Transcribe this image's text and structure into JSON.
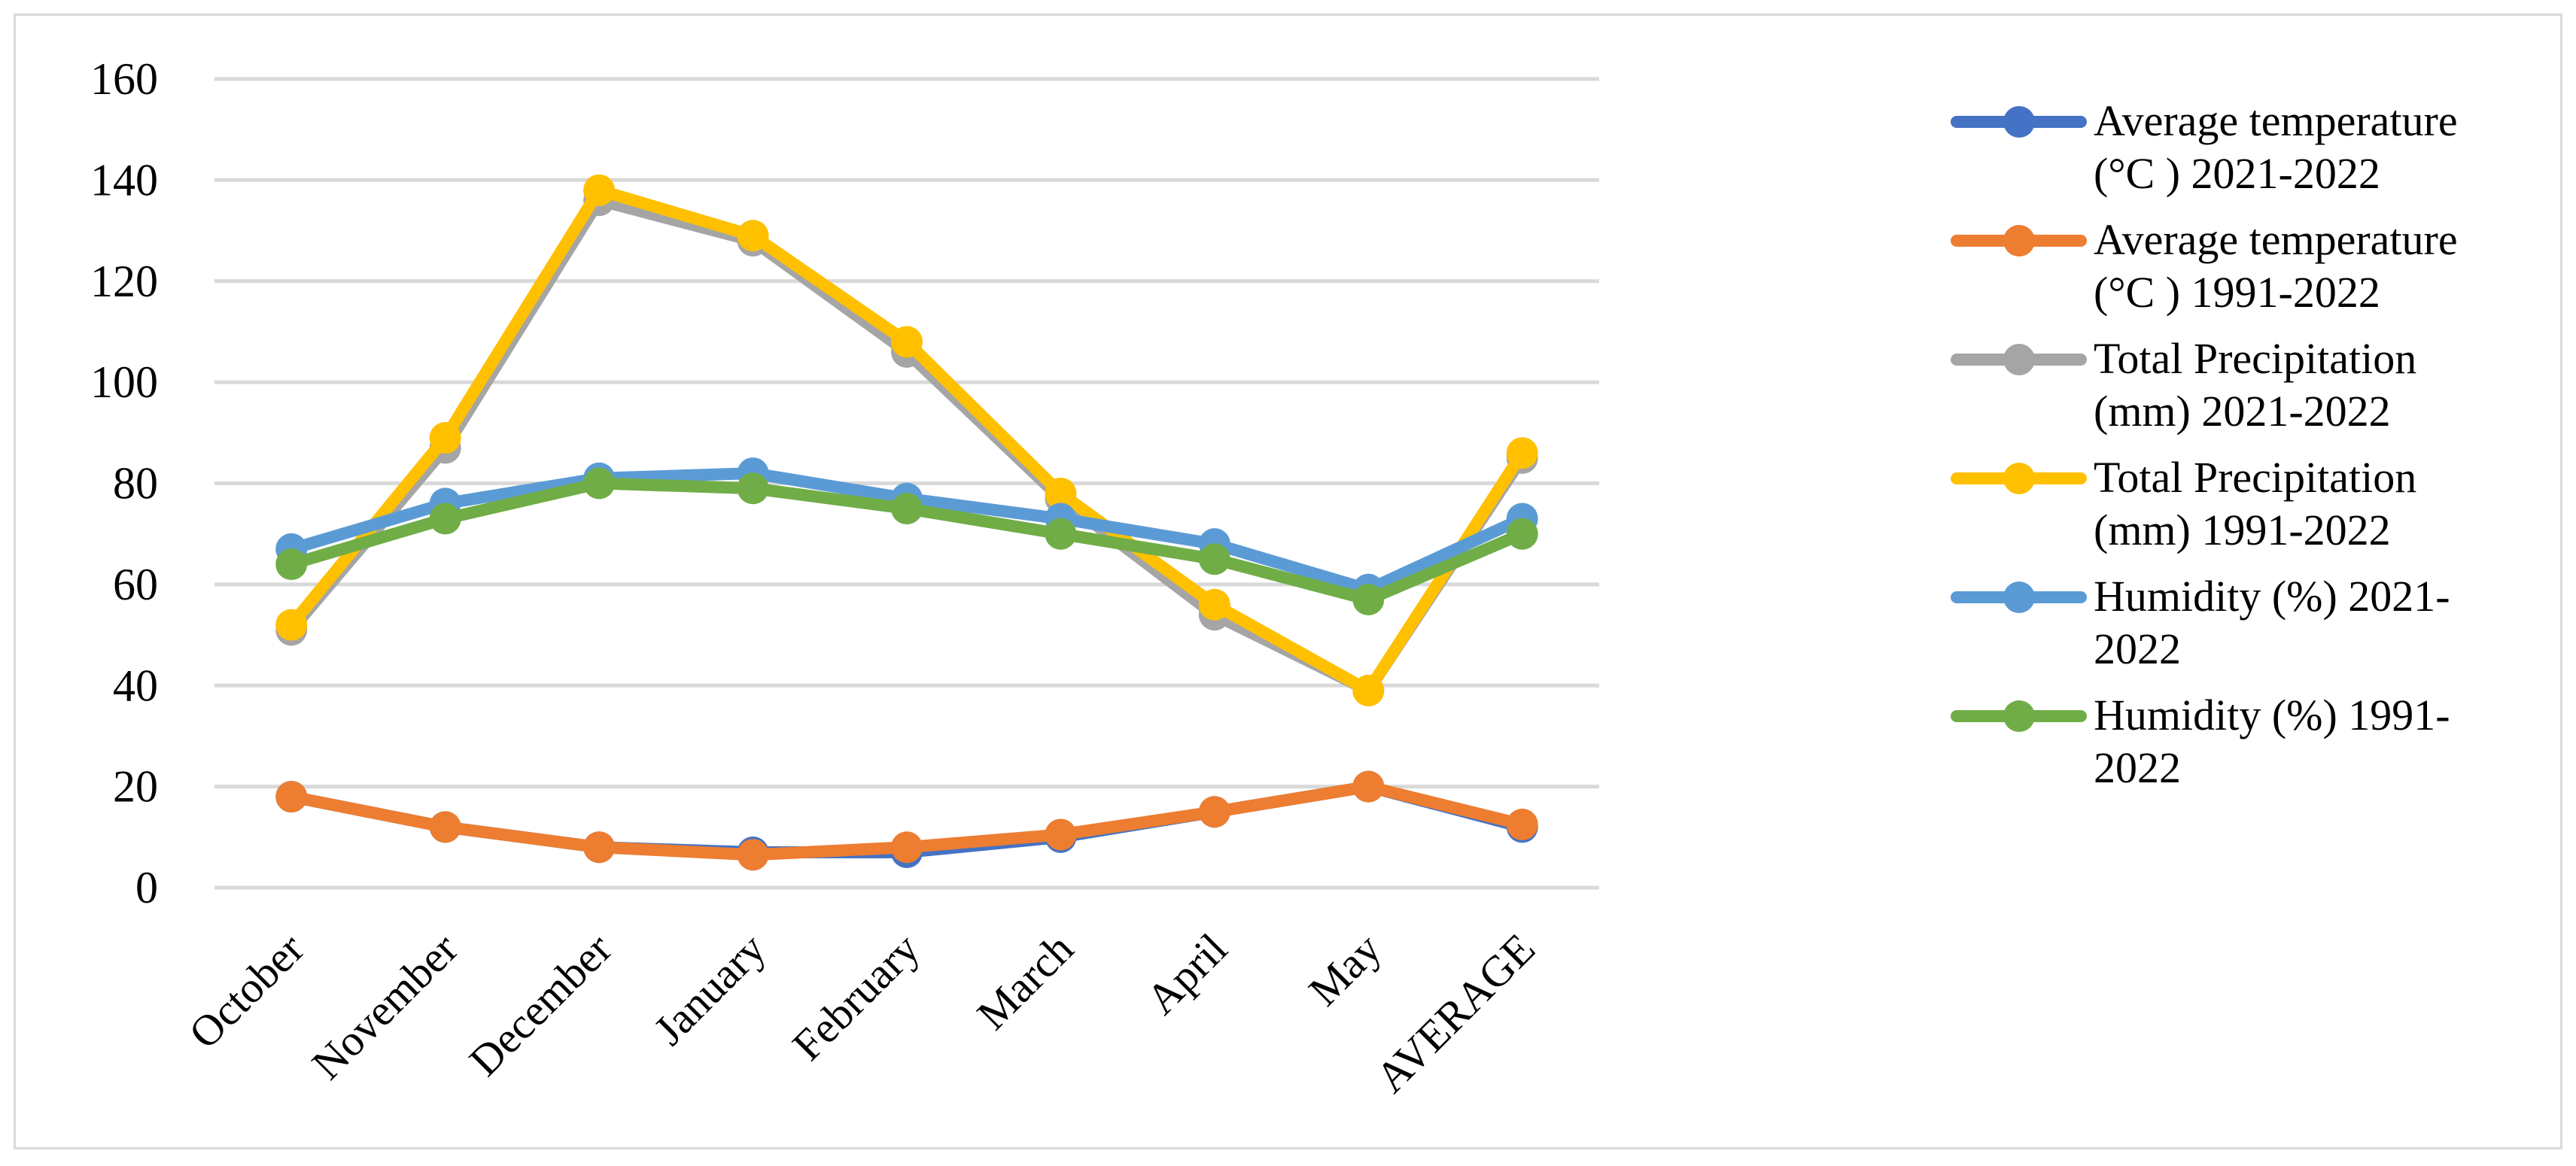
{
  "chart_data": {
    "type": "line",
    "categories": [
      "October",
      "November",
      "December",
      "January",
      "February",
      "March",
      "April",
      "May",
      "AVERAGE"
    ],
    "ylim": [
      0,
      160
    ],
    "yticks": [
      0,
      20,
      40,
      60,
      80,
      100,
      120,
      140,
      160
    ],
    "grid": true,
    "legend_position": "right",
    "series": [
      {
        "name": "Average temperature (°C ) 2021-2022",
        "legend_lines": [
          "Average temperature",
          "(°C ) 2021-2022"
        ],
        "color": "#4472c4",
        "values": [
          18,
          12,
          8,
          7,
          7,
          10,
          15,
          20,
          12
        ]
      },
      {
        "name": "Average temperature (°C ) 1991-2022",
        "legend_lines": [
          "Average temperature",
          "(°C ) 1991-2022"
        ],
        "color": "#ed7d31",
        "values": [
          18,
          12,
          8,
          6.5,
          8,
          10.5,
          15,
          20,
          12.5
        ]
      },
      {
        "name": "Total Precipitation (mm) 2021-2022",
        "legend_lines": [
          "Total Precipitation",
          "(mm) 2021-2022"
        ],
        "color": "#a5a5a5",
        "values": [
          51,
          87,
          136,
          128,
          106,
          77,
          54,
          39,
          85
        ]
      },
      {
        "name": "Total Precipitation (mm) 1991-2022",
        "legend_lines": [
          "Total Precipitation",
          "(mm) 1991-2022"
        ],
        "color": "#ffc000",
        "values": [
          52,
          89,
          138,
          129,
          108,
          78,
          56,
          39,
          86
        ]
      },
      {
        "name": "Humidity (%) 2021-2022",
        "legend_lines": [
          "Humidity (%) 2021-",
          "2022"
        ],
        "color": "#5b9bd5",
        "values": [
          67,
          76,
          81,
          82,
          77,
          73,
          68,
          59,
          73
        ]
      },
      {
        "name": "Humidity (%) 1991-2022",
        "legend_lines": [
          "Humidity (%) 1991-",
          "2022"
        ],
        "color": "#70ad47",
        "values": [
          64,
          73,
          80,
          79,
          75,
          70,
          65,
          57,
          70
        ]
      }
    ]
  }
}
